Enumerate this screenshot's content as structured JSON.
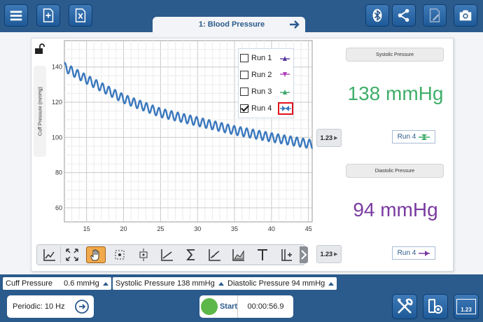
{
  "toolbar": {
    "icons": [
      "menu-icon",
      "new-experiment-icon",
      "export-excel-icon",
      "bluetooth-icon",
      "share-icon",
      "annotate-icon",
      "camera-icon"
    ]
  },
  "tab": {
    "label": "1: Blood Pressure"
  },
  "graph": {
    "y_axis_label": "Cuff Pressure (mmHg)",
    "x_ticks": [
      "15",
      "20",
      "25",
      "30",
      "35",
      "40",
      "45"
    ],
    "y_ticks": [
      "60",
      "80",
      "100",
      "120",
      "140"
    ]
  },
  "chart_data": {
    "type": "line",
    "title": "",
    "xlabel": "",
    "ylabel": "Cuff Pressure (mmHg)",
    "xlim": [
      12,
      45.5
    ],
    "ylim": [
      52,
      155
    ],
    "grid": true,
    "series": [
      {
        "name": "Run 4",
        "color": "#3a78bd",
        "x": [
          12,
          15,
          20,
          25,
          30,
          35,
          40,
          45.5
        ],
        "values": [
          140,
          133,
          122,
          114,
          109,
          104,
          100,
          96
        ],
        "oscillation_amplitude": 2.5
      }
    ]
  },
  "legend": {
    "items": [
      {
        "label": "Run 1",
        "checked": false,
        "color": "#5b3aa0",
        "symbol": "up"
      },
      {
        "label": "Run 2",
        "checked": false,
        "color": "#b040b8",
        "symbol": "down"
      },
      {
        "label": "Run 3",
        "checked": false,
        "color": "#3aa86a",
        "symbol": "up"
      },
      {
        "label": "Run 4",
        "checked": true,
        "color": "#3a78bd",
        "symbol": "bowtie"
      }
    ]
  },
  "display_buttons": {
    "label": "1.23"
  },
  "meters": {
    "systolic": {
      "title": "Systolic Pressure",
      "value": "138 mmHg",
      "color": "#3fae6a",
      "run": "Run 4"
    },
    "diastolic": {
      "title": "Diastolic Pressure",
      "value": "94 mmHg",
      "color": "#7a3aa0",
      "run": "Run 4"
    }
  },
  "sensors": [
    {
      "name": "Cuff Pressure",
      "value": "0.6",
      "unit": "mmHg"
    },
    {
      "name": "Systolic Pressure",
      "value": "138",
      "unit": "mmHg"
    },
    {
      "name": "Diastolic Pressure",
      "value": "94",
      "unit": "mmHg"
    }
  ],
  "bottom": {
    "mode": "Periodic: 10 Hz",
    "start_label": "Start",
    "timer": "00:00:56.9",
    "meter_button_label": "1.23"
  }
}
